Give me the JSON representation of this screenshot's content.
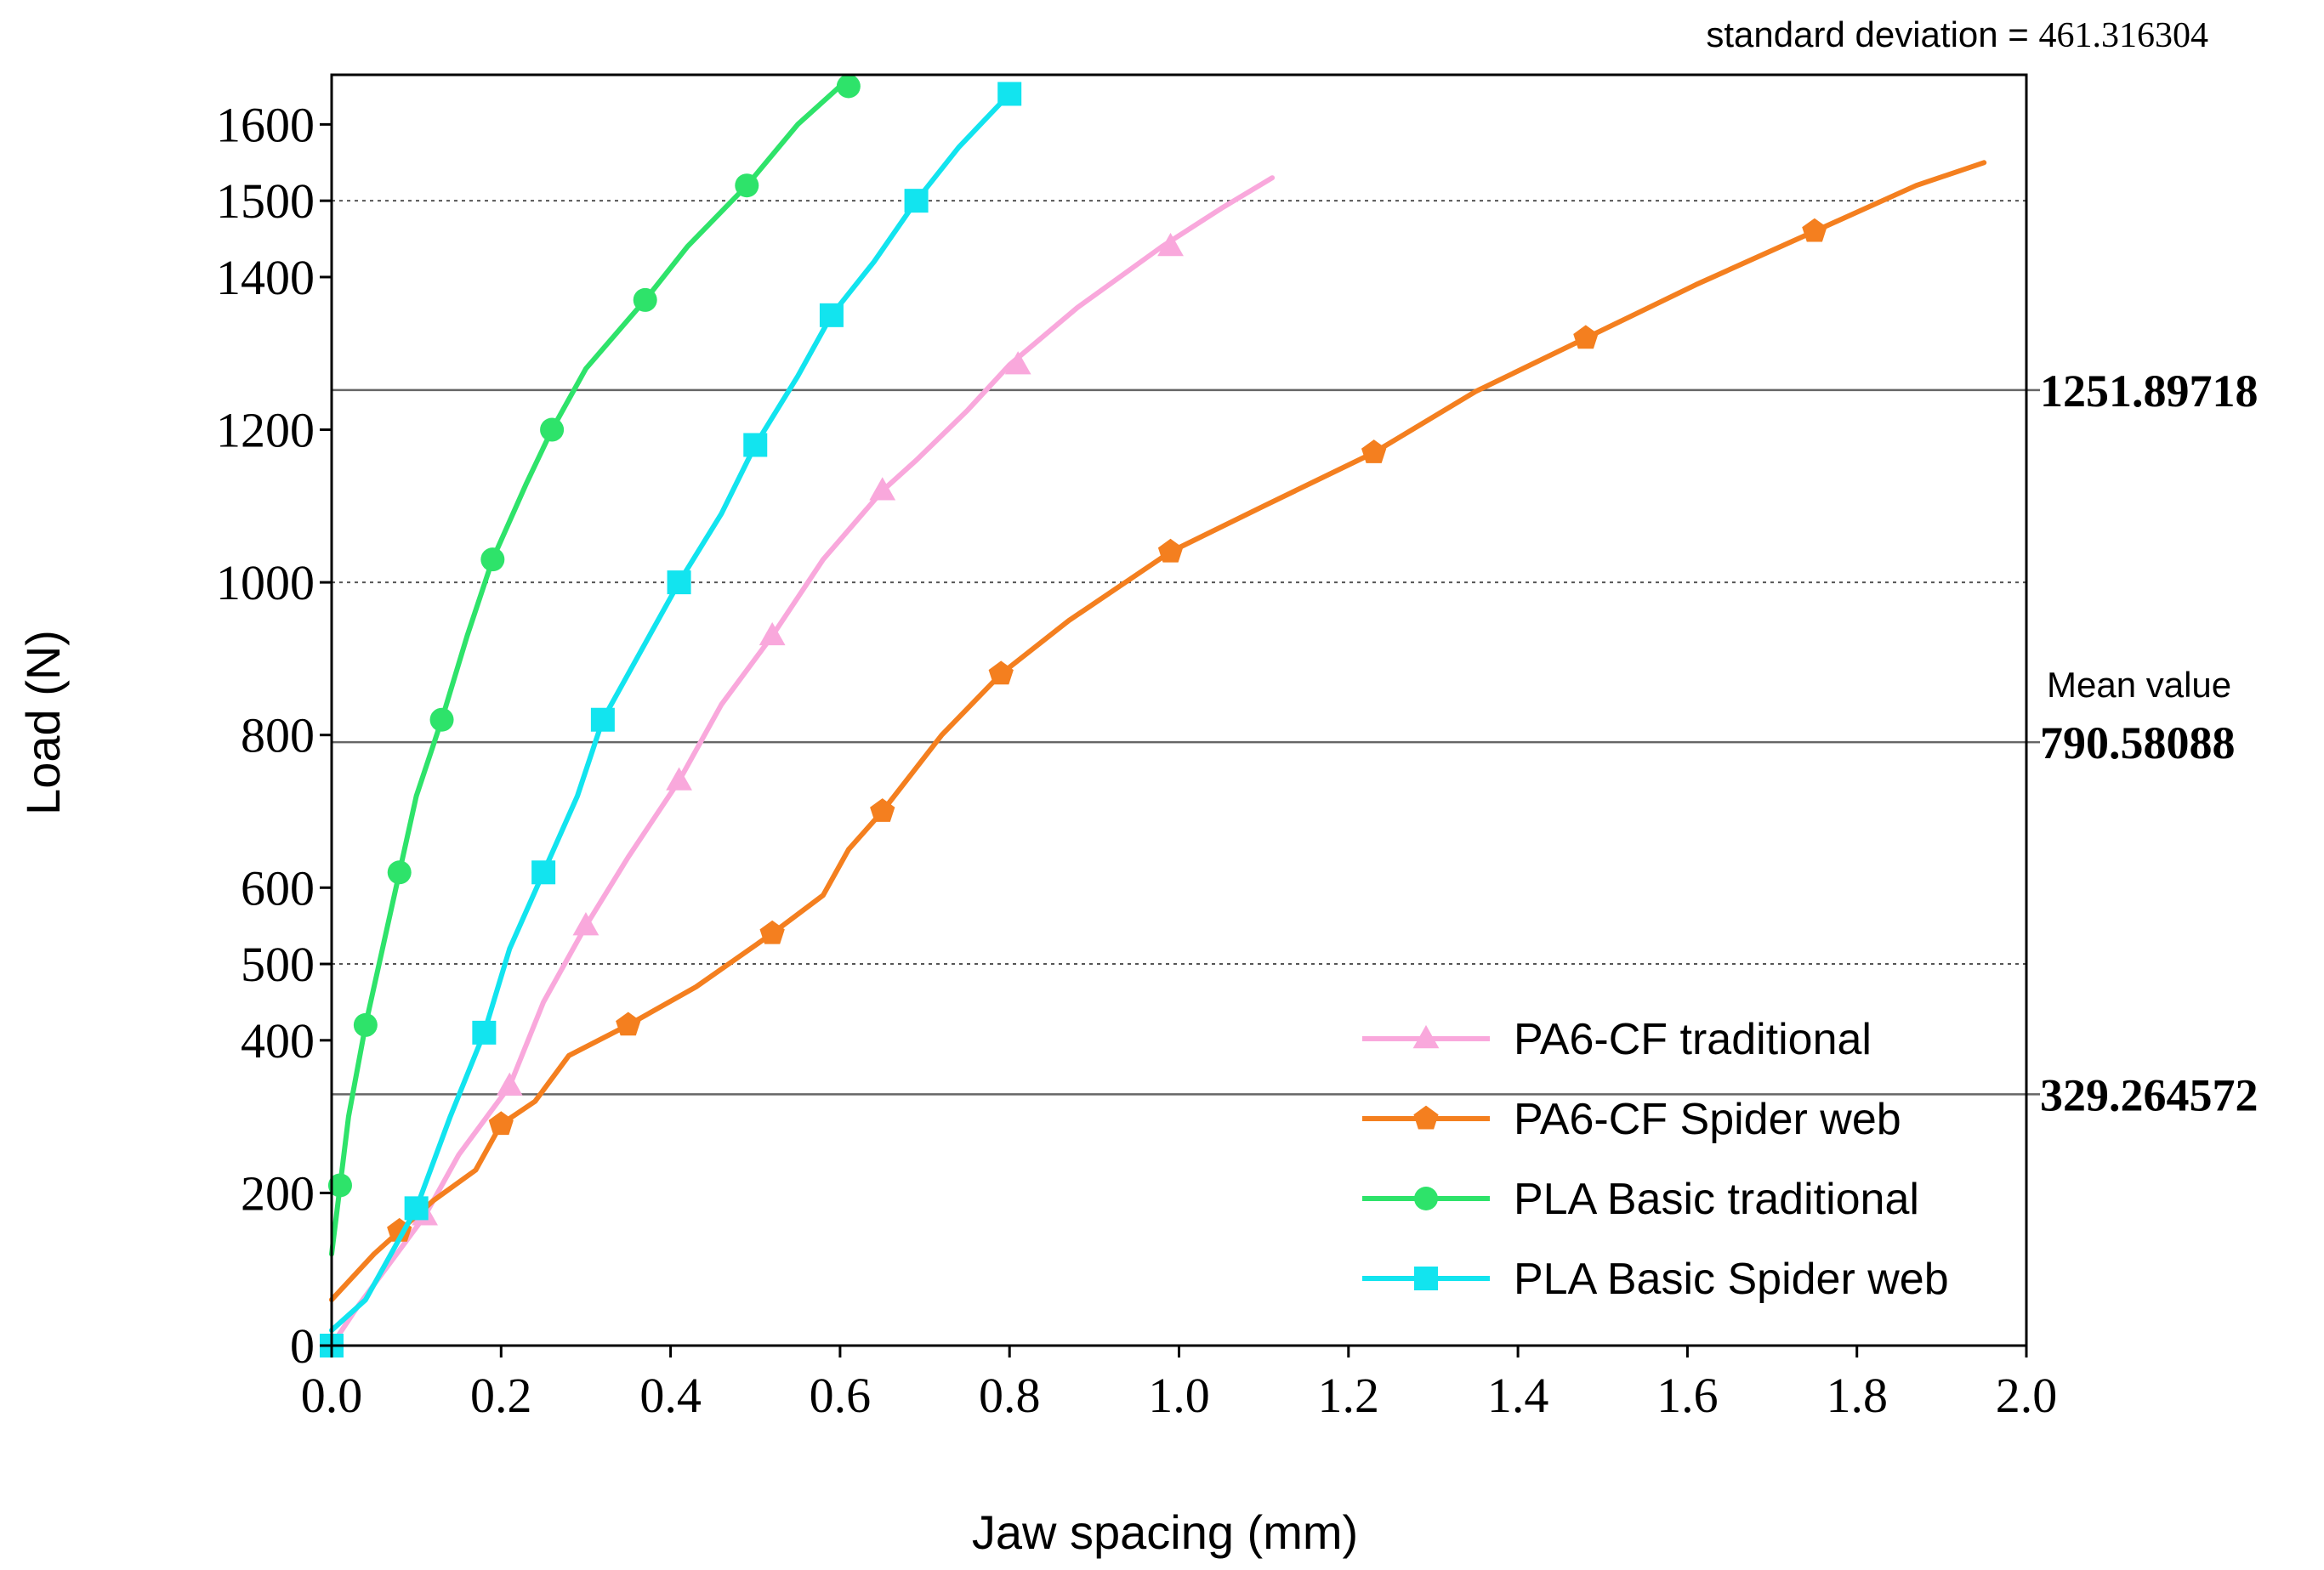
{
  "chart_data": {
    "type": "line",
    "title": "",
    "xlabel": "Jaw spacing (mm)",
    "ylabel": "Load (N)",
    "xlim": [
      0,
      2.0
    ],
    "ylim": [
      0,
      1665
    ],
    "x_ticks": [
      "0.0",
      "0.2",
      "0.4",
      "0.6",
      "0.8",
      "1.0",
      "1.2",
      "1.4",
      "1.6",
      "1.8",
      "2.0"
    ],
    "x_tick_values": [
      0,
      0.2,
      0.4,
      0.6,
      0.8,
      1.0,
      1.2,
      1.4,
      1.6,
      1.8,
      2.0
    ],
    "y_ticks": [
      "0",
      "200",
      "400",
      "500",
      "600",
      "800",
      "1000",
      "1200",
      "1400",
      "1500",
      "1600"
    ],
    "y_tick_values": [
      0,
      200,
      400,
      500,
      600,
      800,
      1000,
      1200,
      1400,
      1500,
      1600
    ],
    "dotted_gridlines": [
      500,
      1000,
      1500
    ],
    "reference_lines": [
      {
        "value": 1251.89718,
        "label": "1251.89718",
        "note": ""
      },
      {
        "value": 790.58088,
        "label": "790.58088",
        "note": "Mean value"
      },
      {
        "value": 329.264572,
        "label": "329.264572",
        "note": ""
      }
    ],
    "annotation": {
      "text": "standard deviation = ",
      "number": "461.316304"
    },
    "legend_position": "bottom-right",
    "series": [
      {
        "name": "PA6-CF traditional",
        "color": "#f9a8dc",
        "marker": "triangle",
        "x": [
          0,
          0.03,
          0.07,
          0.11,
          0.15,
          0.19,
          0.21,
          0.25,
          0.3,
          0.35,
          0.41,
          0.46,
          0.52,
          0.58,
          0.65,
          0.69,
          0.75,
          0.8,
          0.88,
          0.98,
          1.05,
          1.11
        ],
        "y": [
          0,
          50,
          110,
          170,
          250,
          310,
          340,
          450,
          550,
          640,
          740,
          840,
          930,
          1030,
          1120,
          1160,
          1225,
          1285,
          1360,
          1440,
          1490,
          1530
        ],
        "marker_x": [
          0.11,
          0.21,
          0.3,
          0.41,
          0.52,
          0.65,
          0.81,
          0.99
        ],
        "marker_y": [
          170,
          340,
          550,
          740,
          930,
          1120,
          1285,
          1440
        ]
      },
      {
        "name": "PA6-CF Spider web",
        "color": "#f47f1f",
        "marker": "pentagon",
        "x": [
          0,
          0.05,
          0.08,
          0.12,
          0.17,
          0.2,
          0.24,
          0.28,
          0.35,
          0.43,
          0.52,
          0.58,
          0.61,
          0.65,
          0.72,
          0.79,
          0.87,
          0.99,
          1.1,
          1.23,
          1.35,
          1.48,
          1.61,
          1.75,
          1.87,
          1.95
        ],
        "y": [
          60,
          120,
          150,
          190,
          230,
          290,
          320,
          380,
          420,
          470,
          540,
          590,
          650,
          700,
          800,
          880,
          950,
          1040,
          1100,
          1170,
          1250,
          1320,
          1390,
          1460,
          1520,
          1550
        ],
        "marker_x": [
          0.08,
          0.2,
          0.35,
          0.52,
          0.65,
          0.79,
          0.99,
          1.23,
          1.48,
          1.75
        ],
        "marker_y": [
          150,
          290,
          420,
          540,
          700,
          880,
          1040,
          1170,
          1320,
          1460
        ]
      },
      {
        "name": "PLA Basic traditional",
        "color": "#2ee36a",
        "marker": "circle",
        "x": [
          0,
          0.01,
          0.02,
          0.04,
          0.06,
          0.08,
          0.1,
          0.13,
          0.16,
          0.19,
          0.23,
          0.26,
          0.3,
          0.37,
          0.42,
          0.49,
          0.55,
          0.6
        ],
        "y": [
          120,
          210,
          300,
          420,
          520,
          620,
          720,
          820,
          930,
          1030,
          1130,
          1200,
          1280,
          1370,
          1440,
          1520,
          1600,
          1650
        ],
        "marker_x": [
          0.01,
          0.04,
          0.08,
          0.13,
          0.19,
          0.26,
          0.37,
          0.49,
          0.61
        ],
        "marker_y": [
          210,
          420,
          620,
          820,
          1030,
          1200,
          1370,
          1520,
          1650
        ]
      },
      {
        "name": "PLA Basic Spider web",
        "color": "#12e4ef",
        "marker": "square",
        "x": [
          0,
          0.04,
          0.1,
          0.14,
          0.18,
          0.21,
          0.25,
          0.29,
          0.32,
          0.37,
          0.41,
          0.46,
          0.5,
          0.55,
          0.59,
          0.64,
          0.69,
          0.74,
          0.8
        ],
        "y": [
          20,
          60,
          180,
          300,
          410,
          520,
          620,
          720,
          820,
          920,
          1000,
          1090,
          1180,
          1270,
          1350,
          1420,
          1500,
          1570,
          1640
        ],
        "marker_x": [
          0,
          0.1,
          0.18,
          0.25,
          0.32,
          0.41,
          0.5,
          0.59,
          0.69,
          0.8
        ],
        "marker_y": [
          0,
          180,
          410,
          620,
          820,
          1000,
          1180,
          1350,
          1500,
          1640
        ]
      }
    ]
  }
}
